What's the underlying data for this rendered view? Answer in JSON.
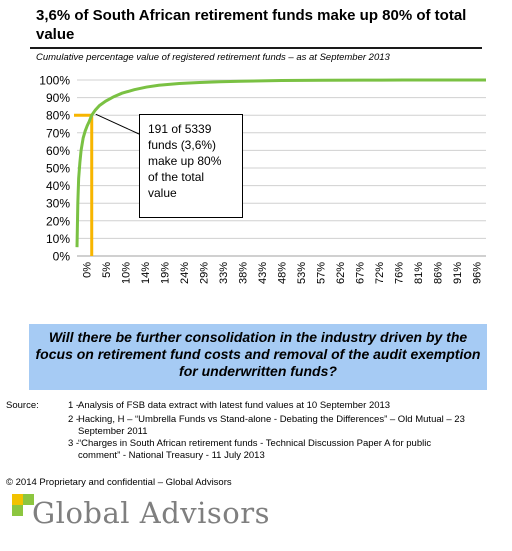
{
  "title": "3,6% of South African retirement funds make up 80% of total value",
  "subtitle": "Cumulative percentage value of registered retirement funds – as at September 2013",
  "callout": "191 of 5339 funds (3,6%) make up 80% of the total value",
  "question": "Will there be further consolidation  in the industry driven by the focus on retirement fund costs and removal  of  the audit exemption for underwritten funds?",
  "sources": {
    "label": "Source:",
    "items": [
      {
        "num": "1 -",
        "text": "Analysis of FSB data extract with latest fund values at 10 September 2013"
      },
      {
        "num": "2 -",
        "text": "Hacking, H – “Umbrella Funds vs Stand-alone - Debating the Differences” – Old Mutual – 23 September 2011"
      },
      {
        "num": "3 -",
        "text": "“Charges in South African retirement funds - Technical Discussion Paper A  for public comment” - National Treasury - 11 July 2013"
      }
    ]
  },
  "copyright": "© 2014 Proprietary and confidential – Global Advisors",
  "logo_text": "Global Advisors",
  "colors": {
    "curve": "#7ac143",
    "marker": "#f7b500",
    "question_bg": "#a6cbf4",
    "grid": "#d0d0d0"
  },
  "chart_data": {
    "type": "line",
    "title": "3,6% of South African retirement funds make up 80% of total value",
    "xlabel": "",
    "ylabel": "",
    "xlim": [
      0,
      100
    ],
    "ylim": [
      0,
      100
    ],
    "x_ticks": [
      "0%",
      "5%",
      "10%",
      "14%",
      "19%",
      "24%",
      "29%",
      "33%",
      "38%",
      "43%",
      "48%",
      "53%",
      "57%",
      "62%",
      "67%",
      "72%",
      "76%",
      "81%",
      "86%",
      "91%",
      "96%"
    ],
    "y_ticks": [
      "0%",
      "10%",
      "20%",
      "30%",
      "40%",
      "50%",
      "60%",
      "70%",
      "80%",
      "90%",
      "100%"
    ],
    "grid": "horizontal",
    "series": [
      {
        "name": "",
        "x": [
          0,
          0.2,
          0.4,
          0.7,
          1,
          1.5,
          2,
          2.5,
          3,
          3.6,
          4.5,
          5.5,
          7,
          9,
          11,
          14,
          17,
          20,
          25,
          30,
          35,
          40,
          45,
          50,
          60,
          70,
          80,
          90,
          100
        ],
        "y": [
          5,
          30,
          44,
          53,
          60,
          67,
          71,
          74,
          76.5,
          80,
          83,
          85.5,
          88,
          90.5,
          92.5,
          94.5,
          96,
          97,
          98,
          98.6,
          99,
          99.3,
          99.5,
          99.7,
          99.85,
          99.93,
          99.97,
          99.99,
          100
        ]
      }
    ],
    "marker": {
      "x": 3.6,
      "y": 80
    }
  }
}
